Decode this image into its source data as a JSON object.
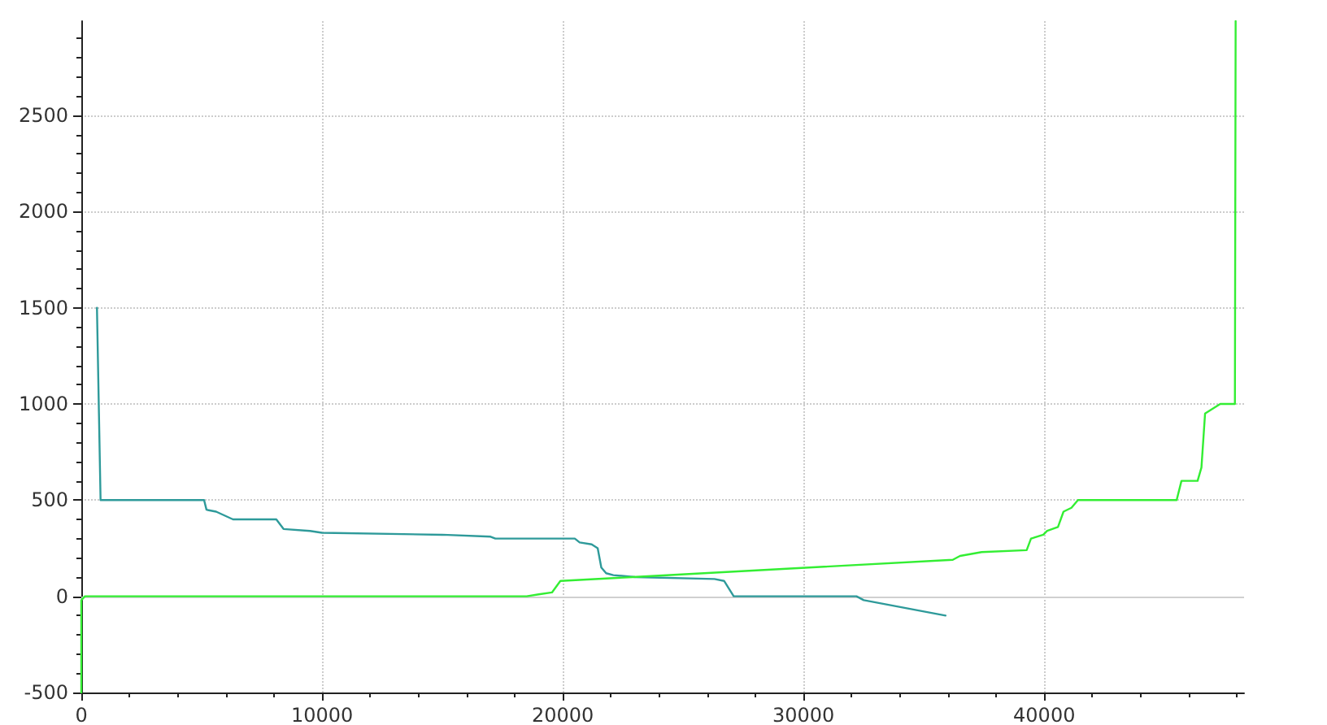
{
  "chart_data": {
    "type": "line",
    "series": [
      {
        "color": "#2e9a9a",
        "x": [
          650,
          800,
          5100,
          5200,
          5600,
          6300,
          8100,
          8400,
          9500,
          10000,
          15000,
          17000,
          17200,
          20500,
          20700,
          21200,
          21450,
          21600,
          21800,
          22100,
          23000,
          26300,
          26700,
          27100,
          32200,
          32500,
          35900
        ],
        "values": [
          1500,
          500,
          500,
          450,
          440,
          400,
          400,
          350,
          340,
          330,
          320,
          310,
          300,
          300,
          280,
          270,
          250,
          150,
          120,
          110,
          100,
          90,
          80,
          0,
          0,
          -20,
          -100
        ]
      },
      {
        "color": "#33ee33",
        "x": [
          0,
          0,
          150,
          300,
          18500,
          19000,
          19550,
          19900,
          22900,
          36200,
          36500,
          37400,
          39270,
          39450,
          39960,
          40120,
          40570,
          40800,
          41130,
          41400,
          45500,
          45700,
          46370,
          46530,
          46680,
          47310,
          47920,
          47950
        ],
        "values": [
          -500,
          -20,
          0,
          0,
          0,
          10,
          20,
          80,
          100,
          190,
          210,
          230,
          240,
          300,
          320,
          340,
          360,
          440,
          460,
          500,
          500,
          600,
          600,
          670,
          950,
          1000,
          1000,
          2990
        ]
      }
    ],
    "xlim": [
      0,
      48300
    ],
    "xticks": [
      0,
      10000,
      20000,
      30000,
      40000
    ],
    "ylim": [
      -500,
      2990
    ],
    "yticks": [
      -500,
      0,
      500,
      1000,
      1500,
      2000,
      2500
    ],
    "grid": true,
    "marker": "none",
    "line_style": "solid",
    "ref_lines": [
      {
        "axis": "y",
        "value": 0,
        "color": "#d0d0d0",
        "line_style": "solid"
      }
    ]
  }
}
